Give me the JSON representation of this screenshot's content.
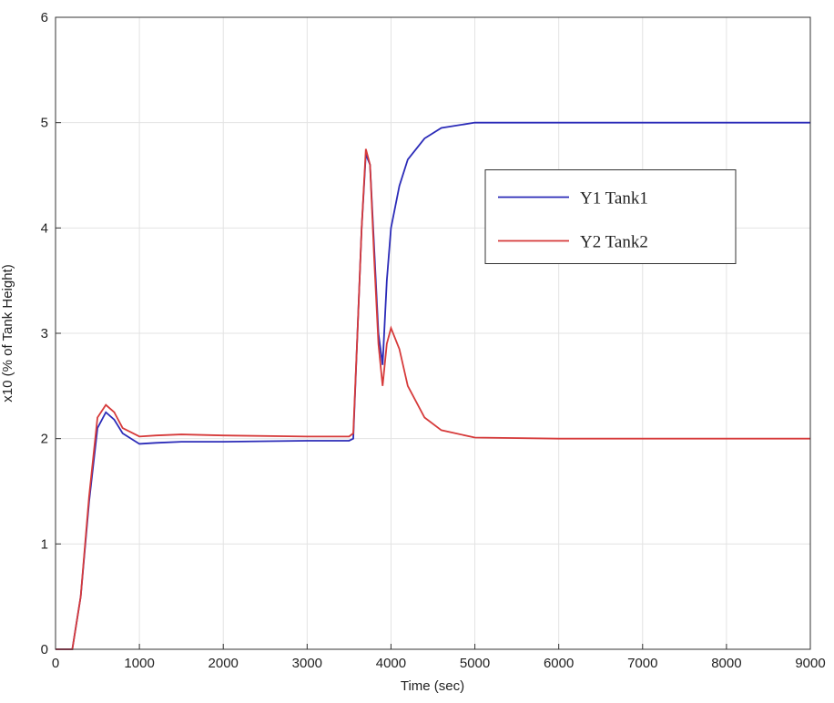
{
  "chart_data": {
    "type": "line",
    "xlabel": "Time (sec)",
    "ylabel": "x10 (% of Tank Height)",
    "x": [
      0,
      200,
      300,
      400,
      500,
      600,
      700,
      800,
      1000,
      1200,
      1500,
      2000,
      3000,
      3500,
      3550,
      3600,
      3650,
      3700,
      3750,
      3800,
      3850,
      3900,
      3950,
      4000,
      4100,
      4200,
      4400,
      4600,
      5000,
      6000,
      9000
    ],
    "series": [
      {
        "name": "Y1 Tank1",
        "color": "#2b2bb8",
        "values": [
          0,
          0,
          0.5,
          1.4,
          2.1,
          2.25,
          2.18,
          2.05,
          1.95,
          1.96,
          1.97,
          1.97,
          1.98,
          1.98,
          2.0,
          3.0,
          4.0,
          4.7,
          4.6,
          3.8,
          3.0,
          2.7,
          3.5,
          4.0,
          4.4,
          4.65,
          4.85,
          4.95,
          5.0,
          5.0,
          5.0
        ]
      },
      {
        "name": "Y2 Tank2",
        "color": "#d63a3a",
        "values": [
          0,
          0,
          0.5,
          1.45,
          2.2,
          2.32,
          2.25,
          2.1,
          2.02,
          2.03,
          2.04,
          2.03,
          2.02,
          2.02,
          2.05,
          3.0,
          4.0,
          4.75,
          4.6,
          3.7,
          2.9,
          2.5,
          2.9,
          3.05,
          2.85,
          2.5,
          2.2,
          2.08,
          2.01,
          2.0,
          2.0
        ]
      }
    ],
    "xlim": [
      0,
      9000
    ],
    "ylim": [
      0,
      6
    ],
    "xticks": [
      0,
      1000,
      2000,
      3000,
      4000,
      5000,
      6000,
      7000,
      8000,
      9000
    ],
    "yticks": [
      0,
      1,
      2,
      3,
      4,
      5,
      6
    ],
    "grid": true,
    "legend": "east"
  }
}
